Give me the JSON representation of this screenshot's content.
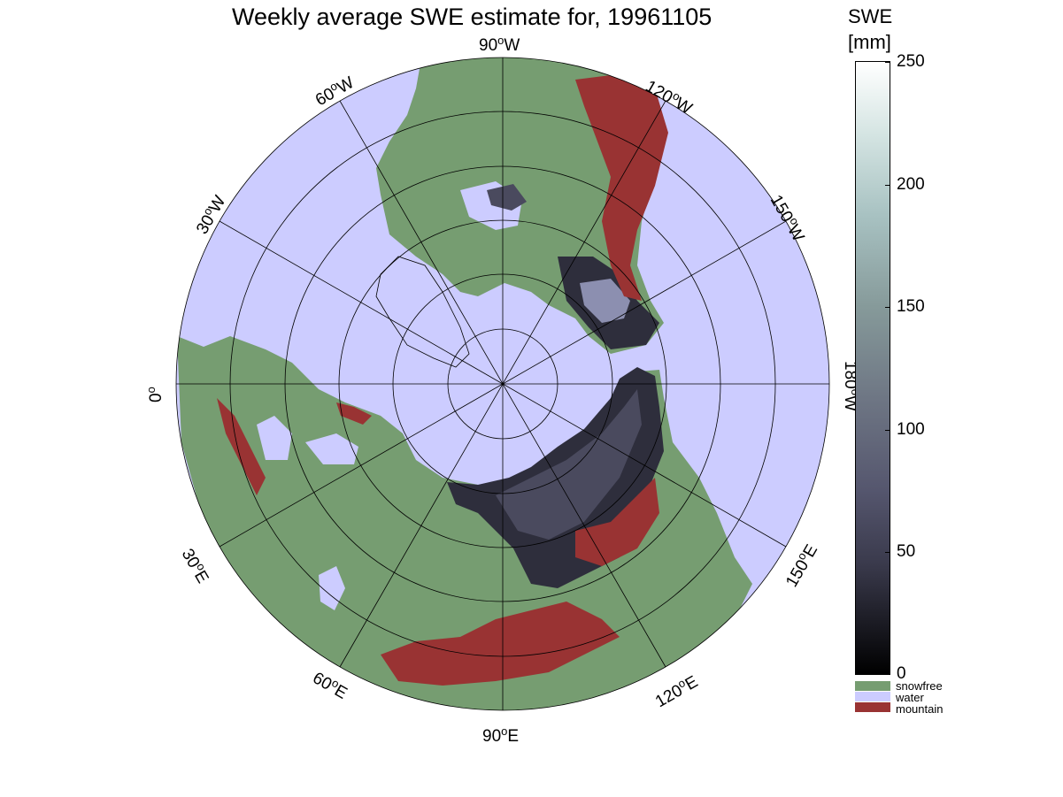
{
  "title": "Weekly average SWE estimate for, 19961105",
  "colorbar": {
    "title_line1": "SWE",
    "title_line2": "[mm]",
    "ticks": [
      "0",
      "50",
      "100",
      "150",
      "200",
      "250"
    ],
    "range_mm": [
      0,
      250
    ]
  },
  "legend": {
    "items": [
      {
        "label": "snowfree",
        "color": "#769d71"
      },
      {
        "label": "water",
        "color": "#ccccff"
      },
      {
        "label": "mountain",
        "color": "#993333"
      }
    ]
  },
  "map": {
    "projection": "north polar stereographic",
    "longitude_labels": [
      "90",
      "W",
      "120",
      "W",
      "150",
      "W",
      "180",
      "W",
      "0",
      "30",
      "W",
      "60",
      "W",
      "90",
      "E",
      "120",
      "E",
      "150",
      "E",
      "30",
      "E",
      "60",
      "E"
    ],
    "colors": {
      "ocean": "#ccccff",
      "land_snowfree": "#769d71",
      "mountain": "#993333",
      "snow_dark": "#2a2a36",
      "snow_mid": "#4a4a5e",
      "snow_light": "#8c8fb0"
    }
  }
}
